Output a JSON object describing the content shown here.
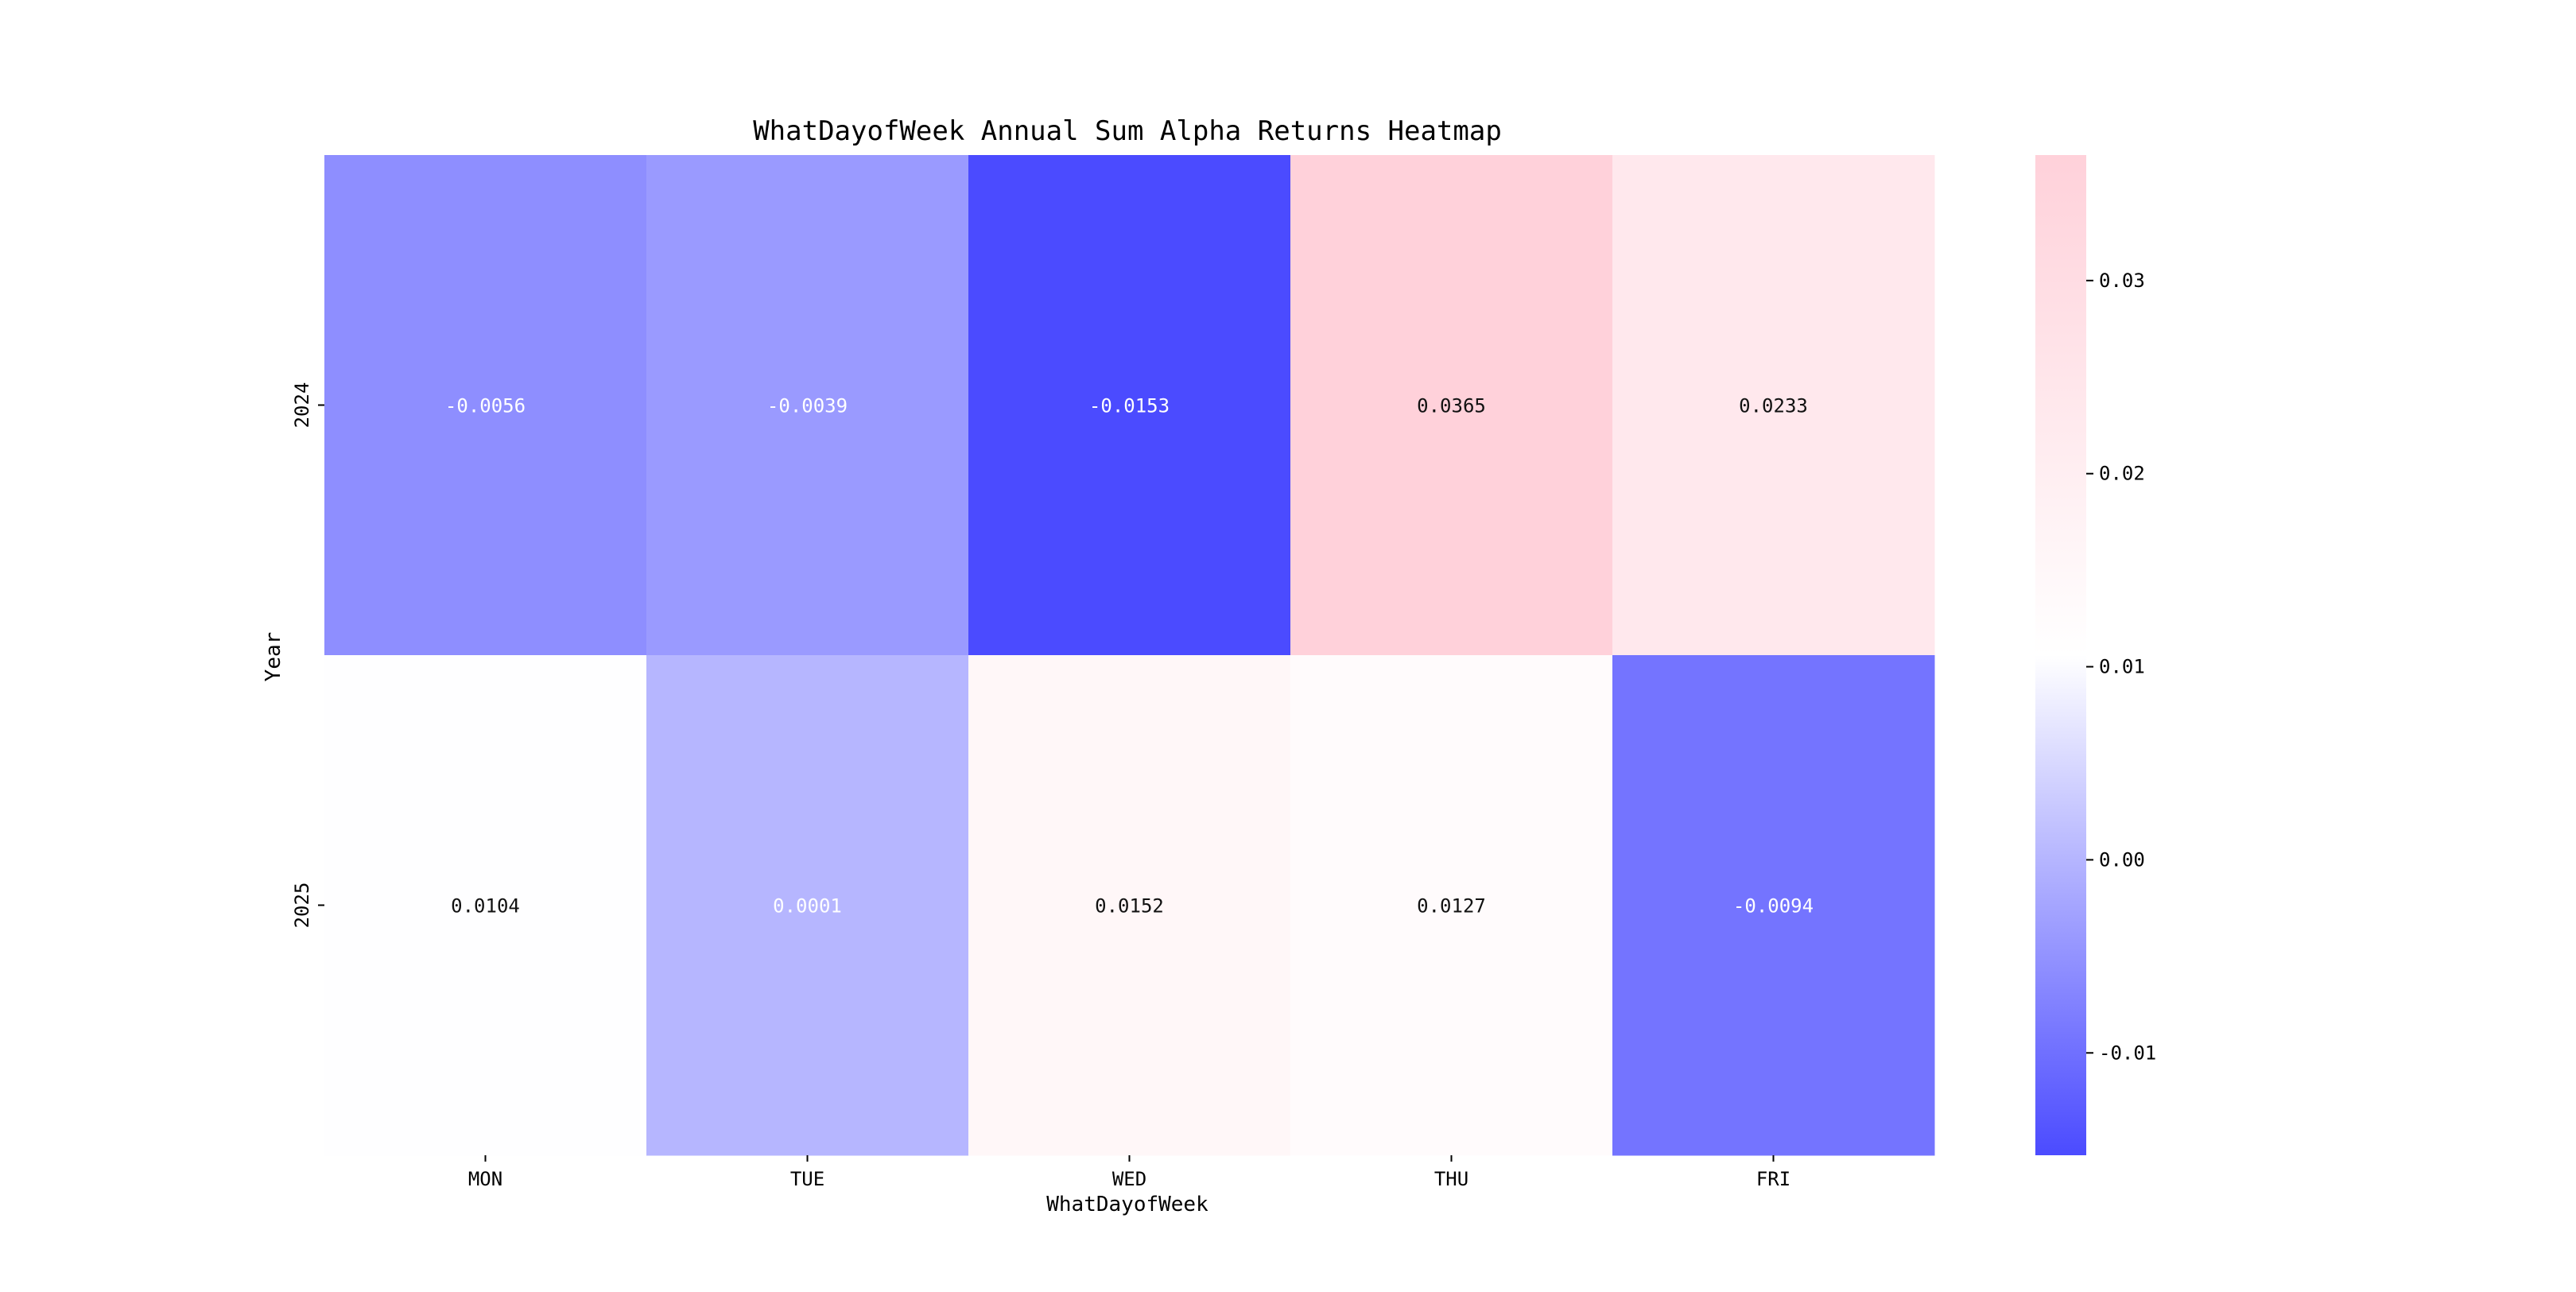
{
  "chart_data": {
    "type": "heatmap",
    "title": "WhatDayofWeek Annual Sum Alpha Returns Heatmap",
    "xlabel": "WhatDayofWeek",
    "ylabel": "Year",
    "x_categories": [
      "MON",
      "TUE",
      "WED",
      "THU",
      "FRI"
    ],
    "y_categories": [
      "2024",
      "2025"
    ],
    "values": [
      [
        -0.0056,
        -0.0039,
        -0.0153,
        0.0365,
        0.0233
      ],
      [
        0.0104,
        0.0001,
        0.0152,
        0.0127,
        -0.0094
      ]
    ],
    "cell_labels": [
      [
        "-0.0056",
        "-0.0039",
        "-0.0153",
        "0.0365",
        "0.0233"
      ],
      [
        "0.0104",
        "0.0001",
        "0.0152",
        "0.0127",
        "-0.0094"
      ]
    ],
    "colorbar": {
      "vmin": -0.0153,
      "vmax": 0.0365,
      "center": 0.0106,
      "ticks": [
        -0.01,
        0.0,
        0.01,
        0.02,
        0.03
      ],
      "tick_labels": [
        "-0.01",
        "0.00",
        "0.01",
        "0.02",
        "0.03"
      ],
      "colors": {
        "low": "#4b4bff",
        "mid": "#ffffff",
        "high": "#ffd1da"
      }
    },
    "grid": false,
    "legend": "colorbar-right"
  }
}
